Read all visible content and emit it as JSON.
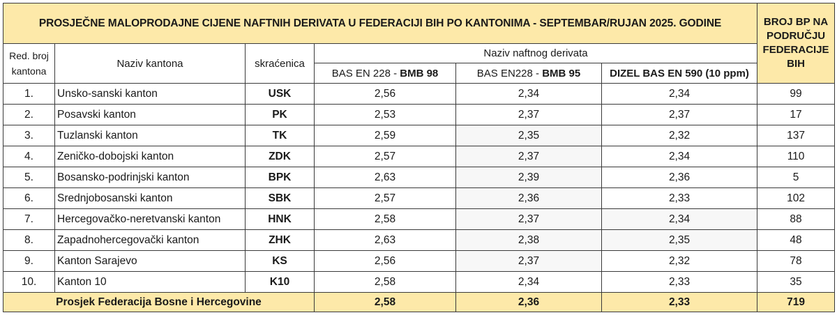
{
  "title": "PROSJEČNE MALOPRODAJNE CIJENE NAFTNIH DERIVATA U FEDERACIJI BIH PO KANTONIMA - SEPTEMBAR/RUJAN 2025. GODINE",
  "bp_header": "BROJ BP NA PODRUČJU FEDERACIJE BIH",
  "headers": {
    "red_broj": "Red. broj kantona",
    "naziv_kantona": "Naziv kantona",
    "skracenica": "skraćenica",
    "naziv_derivata": "Naziv naftnog derivata"
  },
  "products": [
    {
      "prefix": "BAS EN 228 - ",
      "bold": "BMB 98"
    },
    {
      "prefix": "BAS EN228 - ",
      "bold": "BMB 95"
    },
    {
      "prefix": "",
      "bold": "DIZEL BAS EN 590 (10 ppm)"
    }
  ],
  "rows": [
    {
      "no": "1.",
      "name": "Unsko-sanski kanton",
      "abbr": "USK",
      "bmb98": "2,56",
      "bmb95": "2,34",
      "dizel": "2,34",
      "bp": "99"
    },
    {
      "no": "2.",
      "name": "Posavski kanton",
      "abbr": "PK",
      "bmb98": "2,53",
      "bmb95": "2,37",
      "dizel": "2,37",
      "bp": "17"
    },
    {
      "no": "3.",
      "name": "Tuzlanski kanton",
      "abbr": "TK",
      "bmb98": "2,59",
      "bmb95": "2,35",
      "dizel": "2,32",
      "bp": "137"
    },
    {
      "no": "4.",
      "name": "Zeničko-dobojski kanton",
      "abbr": "ZDK",
      "bmb98": "2,57",
      "bmb95": "2,37",
      "dizel": "2,34",
      "bp": "110"
    },
    {
      "no": "5.",
      "name": "Bosansko-podrinjski kanton",
      "abbr": "BPK",
      "bmb98": "2,63",
      "bmb95": "2,39",
      "dizel": "2,36",
      "bp": "5"
    },
    {
      "no": "6.",
      "name": "Srednjobosanski kanton",
      "abbr": "SBK",
      "bmb98": "2,57",
      "bmb95": "2,36",
      "dizel": "2,33",
      "bp": "102"
    },
    {
      "no": "7.",
      "name": "Hercegovačko-neretvanski kanton",
      "abbr": "HNK",
      "bmb98": "2,58",
      "bmb95": "2,37",
      "dizel": "2,34",
      "bp": "88"
    },
    {
      "no": "8.",
      "name": "Zapadnohercegovački kanton",
      "abbr": "ZHK",
      "bmb98": "2,63",
      "bmb95": "2,38",
      "dizel": "2,35",
      "bp": "48"
    },
    {
      "no": "9.",
      "name": "Kanton Sarajevo",
      "abbr": "KS",
      "bmb98": "2,56",
      "bmb95": "2,37",
      "dizel": "2,32",
      "bp": "78"
    },
    {
      "no": "10.",
      "name": "Kanton 10",
      "abbr": "K10",
      "bmb98": "2,58",
      "bmb95": "2,34",
      "dizel": "2,33",
      "bp": "35"
    }
  ],
  "total": {
    "label": "Prosjek Federacija Bosne i Hercegovine",
    "bmb98": "2,58",
    "bmb95": "2,36",
    "dizel": "2,33",
    "bp": "719"
  },
  "colors": {
    "header_fill": "#fde9a9",
    "grid": "#3a3a3a"
  }
}
